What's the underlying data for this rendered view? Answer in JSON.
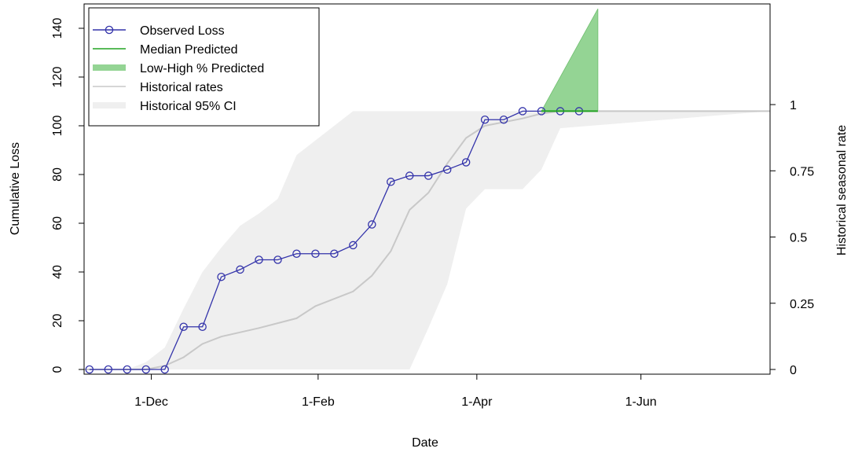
{
  "chart_data": {
    "type": "line",
    "xlabel": "Date",
    "ylabel": "Cumulative Loss",
    "y2label": "Historical seasonal rate",
    "x_domain": [
      "2012-11-06",
      "2013-07-19"
    ],
    "ylim": [
      0,
      150
    ],
    "y2lim": [
      0,
      1.38
    ],
    "x_ticks": [
      {
        "date": "2012-12-01",
        "label": "1-Dec"
      },
      {
        "date": "2013-02-01",
        "label": "1-Feb"
      },
      {
        "date": "2013-04-01",
        "label": "1-Apr"
      },
      {
        "date": "2013-06-01",
        "label": "1-Jun"
      }
    ],
    "y_ticks": [
      0,
      20,
      40,
      60,
      80,
      100,
      120,
      140
    ],
    "y2_ticks": [
      {
        "value": 0,
        "label": "0"
      },
      {
        "value": 0.25,
        "label": "0.25"
      },
      {
        "value": 0.5,
        "label": "0.5"
      },
      {
        "value": 0.75,
        "label": "0.75"
      },
      {
        "value": 1,
        "label": "1"
      }
    ],
    "legend": {
      "position": "top-left",
      "entries": [
        {
          "label": "Observed Loss",
          "kind": "line-circle",
          "color": "#3333aa"
        },
        {
          "label": "Median Predicted",
          "kind": "line",
          "color": "#22a322"
        },
        {
          "label": "Low-High % Predicted",
          "kind": "thick",
          "color": "#94d494"
        },
        {
          "label": "Historical rates",
          "kind": "line",
          "color": "#c8c8c8"
        },
        {
          "label": "Historical 95% CI",
          "kind": "thick",
          "color": "#efefef"
        }
      ]
    },
    "observed_loss": {
      "color": "#3333aa",
      "x": [
        "2012-11-08",
        "2012-11-15",
        "2012-11-22",
        "2012-11-29",
        "2012-12-06",
        "2012-12-13",
        "2012-12-20",
        "2012-12-27",
        "2013-01-03",
        "2013-01-10",
        "2013-01-17",
        "2013-01-24",
        "2013-01-31",
        "2013-02-07",
        "2013-02-14",
        "2013-02-21",
        "2013-02-28",
        "2013-03-07",
        "2013-03-14",
        "2013-03-21",
        "2013-03-28",
        "2013-04-04",
        "2013-04-11",
        "2013-04-18",
        "2013-04-25",
        "2013-05-02",
        "2013-05-09"
      ],
      "y": [
        0,
        0,
        0,
        0,
        0,
        17.5,
        17.5,
        38,
        41,
        45,
        45,
        47.5,
        47.5,
        47.5,
        51,
        59.5,
        77,
        79.5,
        79.5,
        82,
        85,
        102.5,
        102.5,
        106,
        106,
        106,
        106
      ]
    },
    "median_predicted": {
      "color": "#22a322",
      "x": [
        "2013-04-25",
        "2013-05-16"
      ],
      "y": [
        106,
        106
      ]
    },
    "predicted_range": {
      "color": "#94d494",
      "x": [
        "2013-04-25",
        "2013-05-16"
      ],
      "low": [
        106,
        106
      ],
      "high": [
        106,
        148
      ]
    },
    "historical_rates": {
      "color": "#c8c8c8",
      "x": [
        "2012-11-06",
        "2012-11-29",
        "2012-12-06",
        "2012-12-13",
        "2012-12-20",
        "2012-12-27",
        "2013-01-10",
        "2013-01-24",
        "2013-01-31",
        "2013-02-14",
        "2013-02-21",
        "2013-02-28",
        "2013-03-07",
        "2013-03-14",
        "2013-03-21",
        "2013-03-28",
        "2013-04-04",
        "2013-04-11",
        "2013-04-18",
        "2013-04-25",
        "2013-05-02",
        "2013-07-19"
      ],
      "y": [
        0,
        0,
        1.5,
        5,
        10.5,
        13.5,
        17,
        21,
        26,
        32,
        38.5,
        48.5,
        65.5,
        72.5,
        84.5,
        95,
        100,
        101.5,
        103,
        105,
        106,
        106
      ]
    },
    "historical_ci": {
      "color": "#efefef",
      "x": [
        "2012-11-06",
        "2012-11-22",
        "2012-11-29",
        "2012-12-06",
        "2012-12-13",
        "2012-12-20",
        "2012-12-27",
        "2013-01-03",
        "2013-01-10",
        "2013-01-17",
        "2013-01-24",
        "2013-01-31",
        "2013-02-07",
        "2013-02-14",
        "2013-02-21",
        "2013-02-28",
        "2013-03-07",
        "2013-03-14",
        "2013-03-21",
        "2013-03-28",
        "2013-04-04",
        "2013-04-11",
        "2013-04-18",
        "2013-04-25",
        "2013-05-02",
        "2013-07-19"
      ],
      "low": [
        0,
        0,
        0,
        0,
        0,
        0,
        0,
        0,
        0,
        0,
        0,
        0,
        0,
        0,
        0,
        0,
        0,
        17,
        35,
        66,
        74,
        74,
        74,
        82,
        99,
        106
      ],
      "high": [
        0,
        0,
        3,
        9,
        25,
        40,
        50,
        59,
        64,
        70,
        88,
        94,
        100,
        106,
        106,
        106,
        106,
        106,
        106,
        106,
        106,
        106,
        106,
        106,
        106,
        106
      ]
    }
  }
}
